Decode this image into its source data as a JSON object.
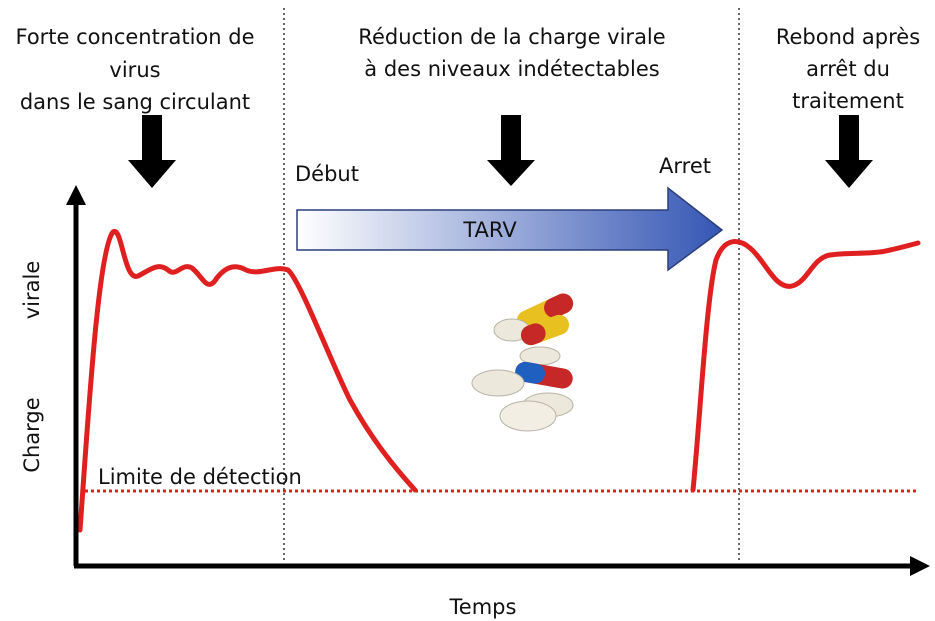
{
  "phases": [
    {
      "lines": [
        "Forte concentration de",
        "virus",
        "dans le sang circulant"
      ]
    },
    {
      "lines": [
        "Réduction de la charge virale",
        "à des niveaux indétectables"
      ]
    },
    {
      "lines": [
        "Rebond après",
        "arrêt du",
        "traitement"
      ]
    }
  ],
  "treatment": {
    "start": "Début",
    "end": "Arret",
    "label": "TARV"
  },
  "detection_limit": "Limite de détection",
  "y_axis": {
    "lines": [
      "Charge",
      "virale"
    ]
  },
  "x_axis": "Temps"
}
